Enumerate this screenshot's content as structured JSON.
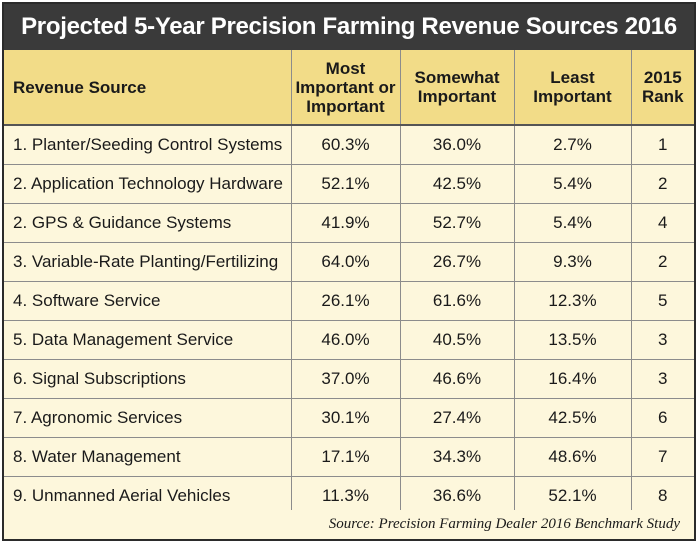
{
  "colors": {
    "title_background": "#3a3a3a",
    "header_background": "#f2dc88",
    "body_background": "#fdf7dc",
    "grid_lines": "#8c8c8c",
    "text": "#1a1a1a"
  },
  "chart_data": {
    "type": "table",
    "title": "Projected 5-Year Precision Farming Revenue Sources 2016",
    "columns": [
      "Revenue Source",
      "Most Important or Important",
      "Somewhat Important",
      "Least Important",
      "2015 Rank"
    ],
    "rows": [
      [
        "1. Planter/Seeding Control Systems",
        "60.3%",
        "36.0%",
        "2.7%",
        "1"
      ],
      [
        "2. Application Technology Hardware",
        "52.1%",
        "42.5%",
        "5.4%",
        "2"
      ],
      [
        "2. GPS & Guidance Systems",
        "41.9%",
        "52.7%",
        "5.4%",
        "4"
      ],
      [
        "3. Variable-Rate Planting/Fertilizing",
        "64.0%",
        "26.7%",
        "9.3%",
        "2"
      ],
      [
        "4. Software Service",
        "26.1%",
        "61.6%",
        "12.3%",
        "5"
      ],
      [
        "5. Data Management Service",
        "46.0%",
        "40.5%",
        "13.5%",
        "3"
      ],
      [
        "6. Signal Subscriptions",
        "37.0%",
        "46.6%",
        "16.4%",
        "3"
      ],
      [
        "7. Agronomic Services",
        "30.1%",
        "27.4%",
        "42.5%",
        "6"
      ],
      [
        "8. Water Management",
        "17.1%",
        "34.3%",
        "48.6%",
        "7"
      ],
      [
        "9. Unmanned Aerial Vehicles",
        "11.3%",
        "36.6%",
        "52.1%",
        "8"
      ]
    ],
    "source": "Source: Precision Farming Dealer 2016 Benchmark Study"
  }
}
